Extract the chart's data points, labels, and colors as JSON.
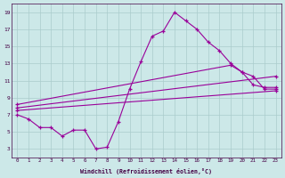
{
  "xlabel": "Windchill (Refroidissement éolien,°C)",
  "bg_color": "#cce8e8",
  "grid_color": "#aacccc",
  "line_color": "#990099",
  "xlim": [
    -0.5,
    23.5
  ],
  "ylim": [
    2.0,
    20.0
  ],
  "xticks": [
    0,
    1,
    2,
    3,
    4,
    5,
    6,
    7,
    8,
    9,
    10,
    11,
    12,
    13,
    14,
    15,
    16,
    17,
    18,
    19,
    20,
    21,
    22,
    23
  ],
  "yticks": [
    3,
    5,
    7,
    9,
    11,
    13,
    15,
    17,
    19
  ],
  "series_main": {
    "x": [
      0,
      1,
      2,
      3,
      4,
      5,
      6,
      7,
      8,
      9,
      10,
      11,
      12,
      13,
      14,
      15,
      16,
      17,
      18,
      19,
      20,
      21,
      22,
      23
    ],
    "y": [
      7.0,
      6.5,
      5.5,
      5.5,
      4.5,
      5.2,
      5.2,
      3.0,
      3.2,
      6.2,
      10.0,
      13.2,
      16.2,
      16.8,
      19.0,
      18.0,
      17.0,
      15.5,
      14.5,
      13.0,
      12.0,
      11.5,
      10.0,
      10.0
    ]
  },
  "series_line1": {
    "x": [
      0,
      23
    ],
    "y": [
      7.5,
      9.8
    ]
  },
  "series_line2": {
    "x": [
      0,
      23
    ],
    "y": [
      7.8,
      11.5
    ]
  },
  "series_line3": {
    "x": [
      0,
      19,
      20,
      21,
      22,
      23
    ],
    "y": [
      8.2,
      12.8,
      12.0,
      10.5,
      10.2,
      10.2
    ]
  }
}
